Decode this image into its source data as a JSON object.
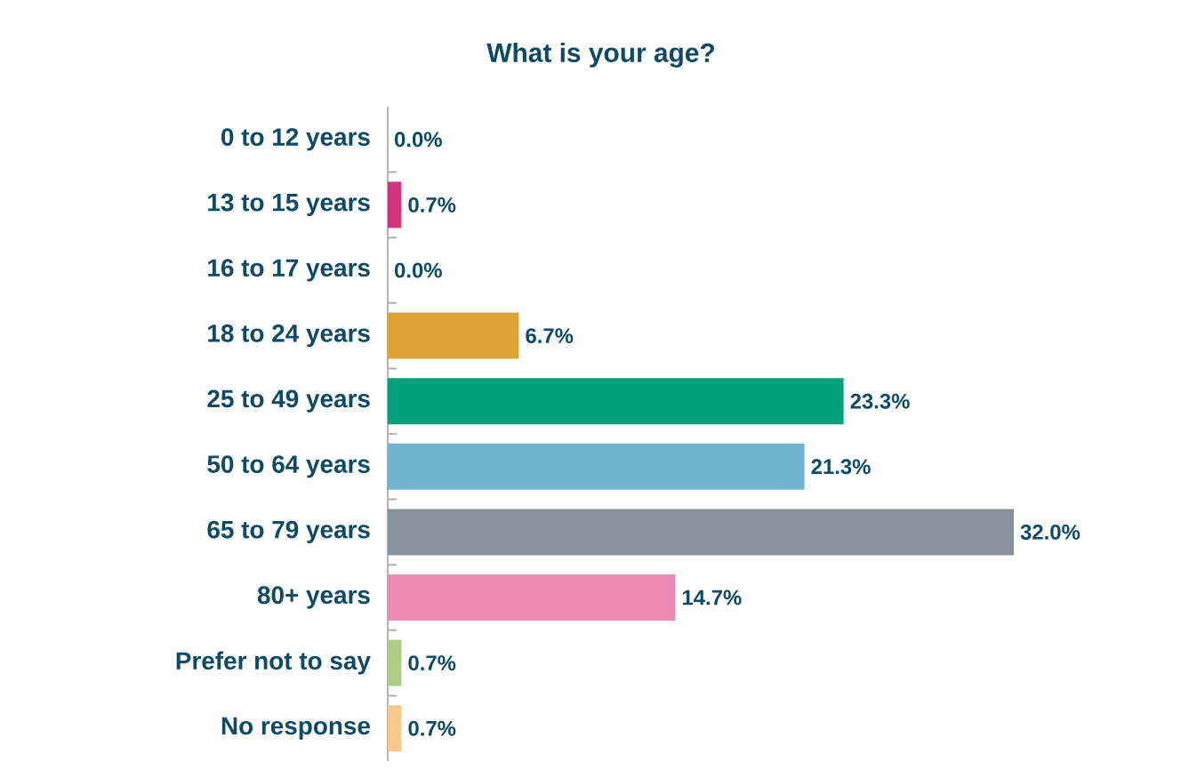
{
  "chart_data": {
    "type": "bar",
    "orientation": "horizontal",
    "title": "What is your age?",
    "categories": [
      "0 to 12 years",
      "13 to 15 years",
      "16 to 17 years",
      "18 to 24 years",
      "25 to 49 years",
      "50 to 64 years",
      "65 to 79 years",
      "80+ years",
      "Prefer not to say",
      "No response"
    ],
    "values": [
      0.0,
      0.7,
      0.0,
      6.7,
      23.3,
      21.3,
      32.0,
      14.7,
      0.7,
      0.7
    ],
    "colors": [
      null,
      "#d0367f",
      null,
      "#dea236",
      "#00a07a",
      "#72b4cf",
      "#86939d",
      "#ec8bb3",
      "#a8cf83",
      "#f8c98a"
    ],
    "value_labels": [
      "0.0%",
      "0.7%",
      "0.0%",
      "6.7%",
      "23.3%",
      "21.3%",
      "32.0%",
      "14.7%",
      "0.7%",
      "0.7%"
    ]
  }
}
